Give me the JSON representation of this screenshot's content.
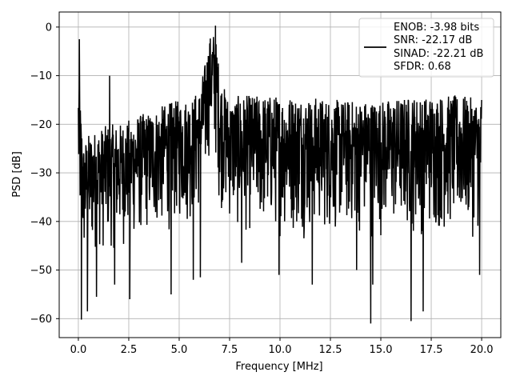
{
  "chart_data": {
    "type": "line",
    "title": "",
    "xlabel": "Frequency [MHz]",
    "ylabel": "PSD [dB]",
    "xlim": [
      -0.95,
      20.95
    ],
    "ylim": [
      -63.9,
      3.1
    ],
    "xticks": [
      0.0,
      2.5,
      5.0,
      7.5,
      10.0,
      12.5,
      15.0,
      17.5,
      20.0
    ],
    "xtick_labels": [
      "0.0",
      "2.5",
      "5.0",
      "7.5",
      "10.0",
      "12.5",
      "15.0",
      "17.5",
      "20.0"
    ],
    "yticks": [
      0,
      -10,
      -20,
      -30,
      -40,
      -50,
      -60
    ],
    "ytick_labels": [
      "0",
      "−10",
      "−20",
      "−30",
      "−40",
      "−50",
      "−60"
    ],
    "grid": true,
    "legend_position": "top-right",
    "legend_entries": [
      "ENOB: -3.98 bits",
      "SNR: -22.17 dB",
      "SINAD: -22.21 dB",
      "SFDR: 0.68"
    ],
    "line_color": "#000000",
    "series": [
      {
        "envelope": {
          "x": [
            0.0,
            0.1,
            0.25,
            0.5,
            1.0,
            1.5,
            2.0,
            2.5,
            3.0,
            3.5,
            4.0,
            4.5,
            5.0,
            5.5,
            6.0,
            6.3,
            6.5,
            6.7,
            6.9,
            7.0,
            7.5,
            8.0,
            9.0,
            10.0,
            11.0,
            12.0,
            13.0,
            14.0,
            15.0,
            16.0,
            17.0,
            18.0,
            19.0,
            20.0
          ],
          "upper": [
            -10,
            -15,
            -24,
            -22,
            -21,
            -20,
            -20,
            -19,
            -18,
            -17.5,
            -16.5,
            -15.5,
            -15,
            -14.5,
            -13,
            -7,
            -2,
            -1,
            -4,
            -10,
            -15,
            -14,
            -14,
            -14,
            -14,
            -14.5,
            -15,
            -15,
            -15,
            -14.5,
            -14,
            -14,
            -14,
            -15
          ],
          "lower": [
            -42,
            -48,
            -52,
            -50,
            -48,
            -47,
            -47,
            -46,
            -45,
            -44,
            -44,
            -43,
            -42,
            -42,
            -40,
            -35,
            -27,
            -27,
            -32,
            -38,
            -42,
            -44,
            -44,
            -44,
            -44,
            -44,
            -44,
            -44,
            -44,
            -44,
            -44,
            -44,
            -44,
            -44
          ],
          "dips": [
            [
              0.15,
              -60.2
            ],
            [
              0.45,
              -58.5
            ],
            [
              0.9,
              -55.5
            ],
            [
              1.8,
              -53.0
            ],
            [
              2.55,
              -56.0
            ],
            [
              4.6,
              -55.0
            ],
            [
              5.7,
              -52.0
            ],
            [
              6.05,
              -51.5
            ],
            [
              8.1,
              -48.5
            ],
            [
              9.95,
              -51.0
            ],
            [
              11.6,
              -53.0
            ],
            [
              13.8,
              -50.0
            ],
            [
              14.5,
              -61.0
            ],
            [
              14.6,
              -53.0
            ],
            [
              16.5,
              -60.5
            ],
            [
              17.1,
              -58.5
            ],
            [
              19.9,
              -51.0
            ]
          ],
          "spikes": [
            [
              0.05,
              -2.5
            ],
            [
              1.55,
              -10.0
            ],
            [
              6.8,
              0.3
            ],
            [
              20.0,
              -15.0
            ]
          ]
        }
      }
    ]
  }
}
